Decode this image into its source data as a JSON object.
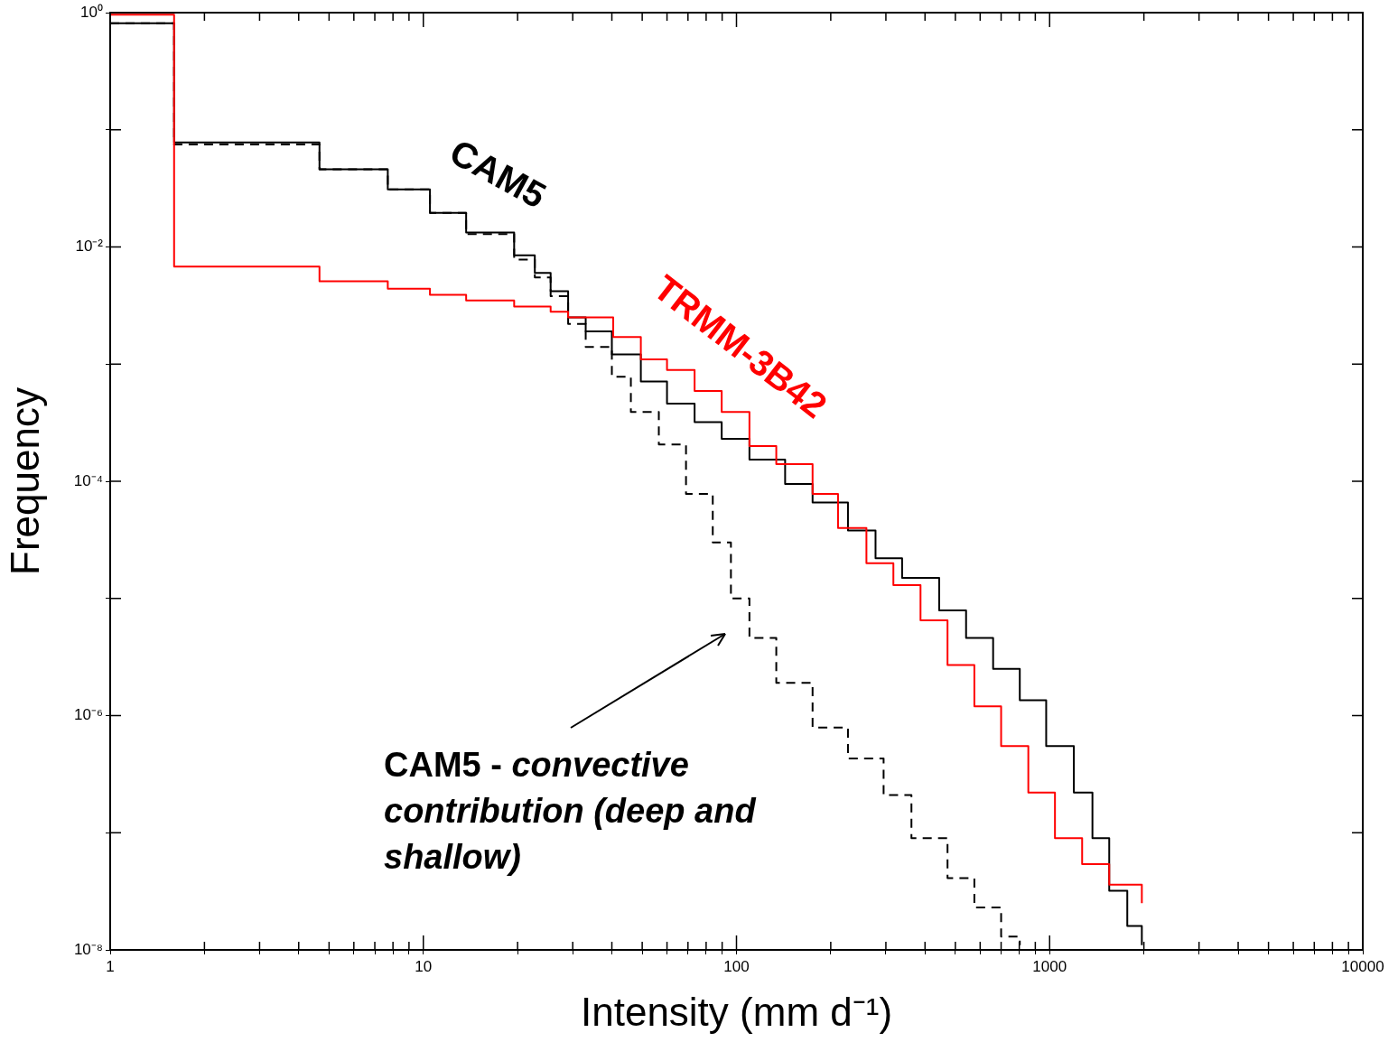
{
  "chart_data": {
    "type": "step",
    "xlabel": "Intensity (mm d⁻¹)",
    "ylabel": "Frequency",
    "log": "xy",
    "grid": false,
    "legend": false,
    "marker": "none",
    "xlim": [
      1,
      10000
    ],
    "ylim": [
      1e-08,
      1
    ],
    "xticks": [
      1,
      {
        "value": 2,
        "label": null
      },
      {
        "value": 3,
        "label": null
      },
      {
        "value": 4,
        "label": null
      },
      {
        "value": 5,
        "label": null
      },
      {
        "value": 6,
        "label": null
      },
      {
        "value": 7,
        "label": null
      },
      {
        "value": 8,
        "label": null
      },
      {
        "value": 9,
        "label": null
      },
      10,
      {
        "value": 20,
        "label": null
      },
      {
        "value": 30,
        "label": null
      },
      {
        "value": 40,
        "label": null
      },
      {
        "value": 50,
        "label": null
      },
      {
        "value": 60,
        "label": null
      },
      {
        "value": 70,
        "label": null
      },
      {
        "value": 80,
        "label": null
      },
      {
        "value": 90,
        "label": null
      },
      100,
      {
        "value": 200,
        "label": null
      },
      {
        "value": 300,
        "label": null
      },
      {
        "value": 400,
        "label": null
      },
      {
        "value": 500,
        "label": null
      },
      {
        "value": 600,
        "label": null
      },
      {
        "value": 700,
        "label": null
      },
      {
        "value": 800,
        "label": null
      },
      {
        "value": 900,
        "label": null
      },
      1000,
      {
        "value": 2000,
        "label": null
      },
      {
        "value": 3000,
        "label": null
      },
      {
        "value": 4000,
        "label": null
      },
      {
        "value": 5000,
        "label": null
      },
      {
        "value": 6000,
        "label": null
      },
      {
        "value": 7000,
        "label": null
      },
      {
        "value": 8000,
        "label": null
      },
      {
        "value": 9000,
        "label": null
      },
      10000
    ],
    "yticks": [
      {
        "value": 1,
        "label": "10⁰"
      },
      {
        "value": 0.1,
        "label": null
      },
      {
        "value": 0.01,
        "label": "10⁻²"
      },
      {
        "value": 0.001,
        "label": null
      },
      {
        "value": 0.0001,
        "label": "10⁻⁴"
      },
      {
        "value": 1e-05,
        "label": null
      },
      {
        "value": 1e-06,
        "label": "10⁻⁶"
      },
      {
        "value": 1e-07,
        "label": null
      },
      {
        "value": 1e-08,
        "label": "10⁻⁸"
      }
    ],
    "series": [
      {
        "name": "TRMM-3B42",
        "color": "#ff0000",
        "line_style": "solid",
        "x": [
          1,
          1.6,
          4.66,
          7.7,
          10.5,
          13.7,
          19.5,
          25.5,
          29,
          40.4,
          49.5,
          60,
          73.5,
          89.7,
          110,
          134,
          175,
          211,
          260,
          317,
          387,
          472,
          575,
          700,
          855,
          1040,
          1270,
          1550,
          1970
        ],
        "values": [
          0.96,
          0.0068,
          0.0051,
          0.0044,
          0.0039,
          0.0035,
          0.0031,
          0.0028,
          0.0025,
          0.0017,
          0.0011,
          0.00089,
          0.00059,
          0.00039,
          0.0002,
          0.00014,
          7.8e-05,
          4e-05,
          2e-05,
          1.3e-05,
          6.5e-06,
          2.7e-06,
          1.2e-06,
          5.5e-07,
          2.2e-07,
          9e-08,
          5.4e-08,
          3.6e-08,
          2.5e-08
        ]
      },
      {
        "name": "CAM5",
        "color": "#000000",
        "line_style": "solid",
        "x": [
          1,
          1.6,
          4.66,
          7.7,
          10.5,
          13.7,
          19.5,
          22.7,
          25.5,
          29,
          33,
          40,
          49.5,
          60,
          73.5,
          89.7,
          110,
          143,
          175,
          227,
          278,
          338,
          444,
          541,
          660,
          803,
          975,
          1195,
          1370,
          1550,
          1770,
          1970
        ],
        "values": [
          0.81,
          0.078,
          0.046,
          0.031,
          0.0195,
          0.0133,
          0.0085,
          0.006,
          0.0042,
          0.0025,
          0.0019,
          0.00121,
          0.00071,
          0.00046,
          0.00032,
          0.00023,
          0.000153,
          9.5e-05,
          6.6e-05,
          3.8e-05,
          2.2e-05,
          1.5e-05,
          7.9e-06,
          4.6e-06,
          2.5e-06,
          1.35e-06,
          5.5e-07,
          2.2e-07,
          9e-08,
          3.2e-08,
          1.6e-08,
          1.1e-08
        ]
      },
      {
        "color": "#000000",
        "line_style": "dashed",
        "x": [
          1,
          1.6,
          4.66,
          7.7,
          10.5,
          13.7,
          19.5,
          22.7,
          25.5,
          29,
          33,
          40,
          46,
          56.5,
          69,
          84,
          96,
          110,
          134,
          175,
          227,
          295,
          362,
          472,
          575,
          700,
          803
        ],
        "values": [
          0.81,
          0.075,
          0.046,
          0.031,
          0.0195,
          0.0129,
          0.0078,
          0.0055,
          0.0038,
          0.0022,
          0.0014,
          0.00078,
          0.00039,
          0.000206,
          7.8e-05,
          3e-05,
          1e-05,
          4.6e-06,
          1.9e-06,
          7.9e-07,
          4.3e-07,
          2.1e-07,
          9e-08,
          4.1e-08,
          2.3e-08,
          1.3e-08,
          1.1e-08
        ]
      }
    ],
    "annotations": [
      "CAM5 - convective contribution (deep and shallow)"
    ]
  }
}
